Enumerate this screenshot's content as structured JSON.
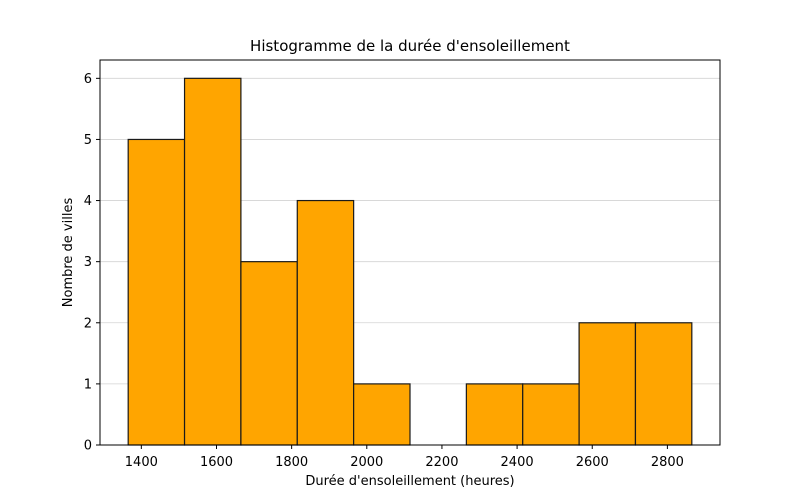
{
  "chart_data": {
    "type": "bar",
    "title": "Histogramme de la durée d'ensoleillement",
    "xlabel": "Durée d'ensoleillement (heures)",
    "ylabel": "Nombre de villes",
    "bins": [
      {
        "x0": 1365,
        "x1": 1515,
        "count": 5
      },
      {
        "x0": 1515,
        "x1": 1665,
        "count": 6
      },
      {
        "x0": 1665,
        "x1": 1815,
        "count": 3
      },
      {
        "x0": 1815,
        "x1": 1965,
        "count": 4
      },
      {
        "x0": 1965,
        "x1": 2115,
        "count": 1
      },
      {
        "x0": 2115,
        "x1": 2265,
        "count": 0
      },
      {
        "x0": 2265,
        "x1": 2415,
        "count": 1
      },
      {
        "x0": 2415,
        "x1": 2565,
        "count": 1
      },
      {
        "x0": 2565,
        "x1": 2715,
        "count": 2
      },
      {
        "x0": 2715,
        "x1": 2865,
        "count": 2
      }
    ],
    "xlim": [
      1290,
      2940
    ],
    "ylim": [
      0,
      6.3
    ],
    "xticks": [
      1400,
      1600,
      1800,
      2000,
      2200,
      2400,
      2600,
      2800
    ],
    "yticks": [
      0,
      1,
      2,
      3,
      4,
      5,
      6
    ],
    "grid": "y",
    "bar_color": "#ffa500",
    "edge_color": "#1a1a1a",
    "grid_color": "#d3d3d3"
  }
}
